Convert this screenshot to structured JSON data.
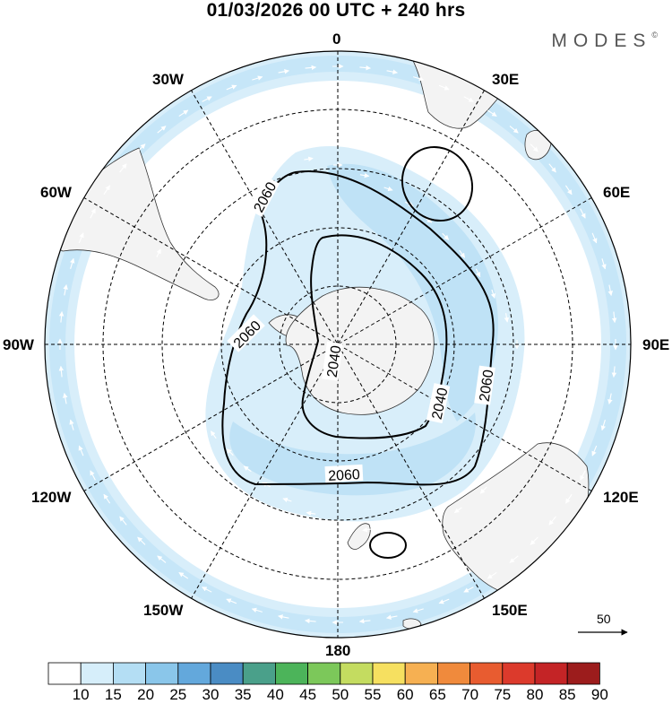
{
  "title": "01/03/2026  00 UTC  + 240 hrs",
  "brand": "MODES",
  "brand_mark": "©",
  "meridian_labels": {
    "m0": "0",
    "m30e": "30E",
    "m60e": "60E",
    "m90e": "90E",
    "m120e": "120E",
    "m150e": "150E",
    "m180": "180",
    "m150w": "150W",
    "m120w": "120W",
    "m90w": "90W",
    "m60w": "60W",
    "m30w": "30W"
  },
  "contour_labels": [
    "2060",
    "2060",
    "2060",
    "2060",
    "2040",
    "2040"
  ],
  "reference_vector": {
    "label": "50"
  },
  "colorbar": {
    "labels": [
      "10",
      "15",
      "20",
      "25",
      "30",
      "35",
      "40",
      "45",
      "50",
      "55",
      "60",
      "65",
      "70",
      "75",
      "80",
      "85",
      "90"
    ],
    "colors": [
      "#ffffff",
      "#d6eefa",
      "#b4def4",
      "#8ac6ea",
      "#63a8dc",
      "#4a8cc4",
      "#4aa08a",
      "#4cb45a",
      "#7cc85a",
      "#c4dc60",
      "#f6e060",
      "#f6b052",
      "#f08a3c",
      "#e85c30",
      "#dc3a2c",
      "#c42426",
      "#9c1c1c"
    ]
  },
  "colors": {
    "ocean": "#ffffff",
    "land": "#f3f3f3",
    "coast": "#333333",
    "jet_light": "#d8eefa",
    "jet_mid": "#bfe2f6",
    "jet_strong": "#a9d7f2",
    "arrow": "#ffffff",
    "grid": "#000000",
    "contour": "#000000"
  }
}
